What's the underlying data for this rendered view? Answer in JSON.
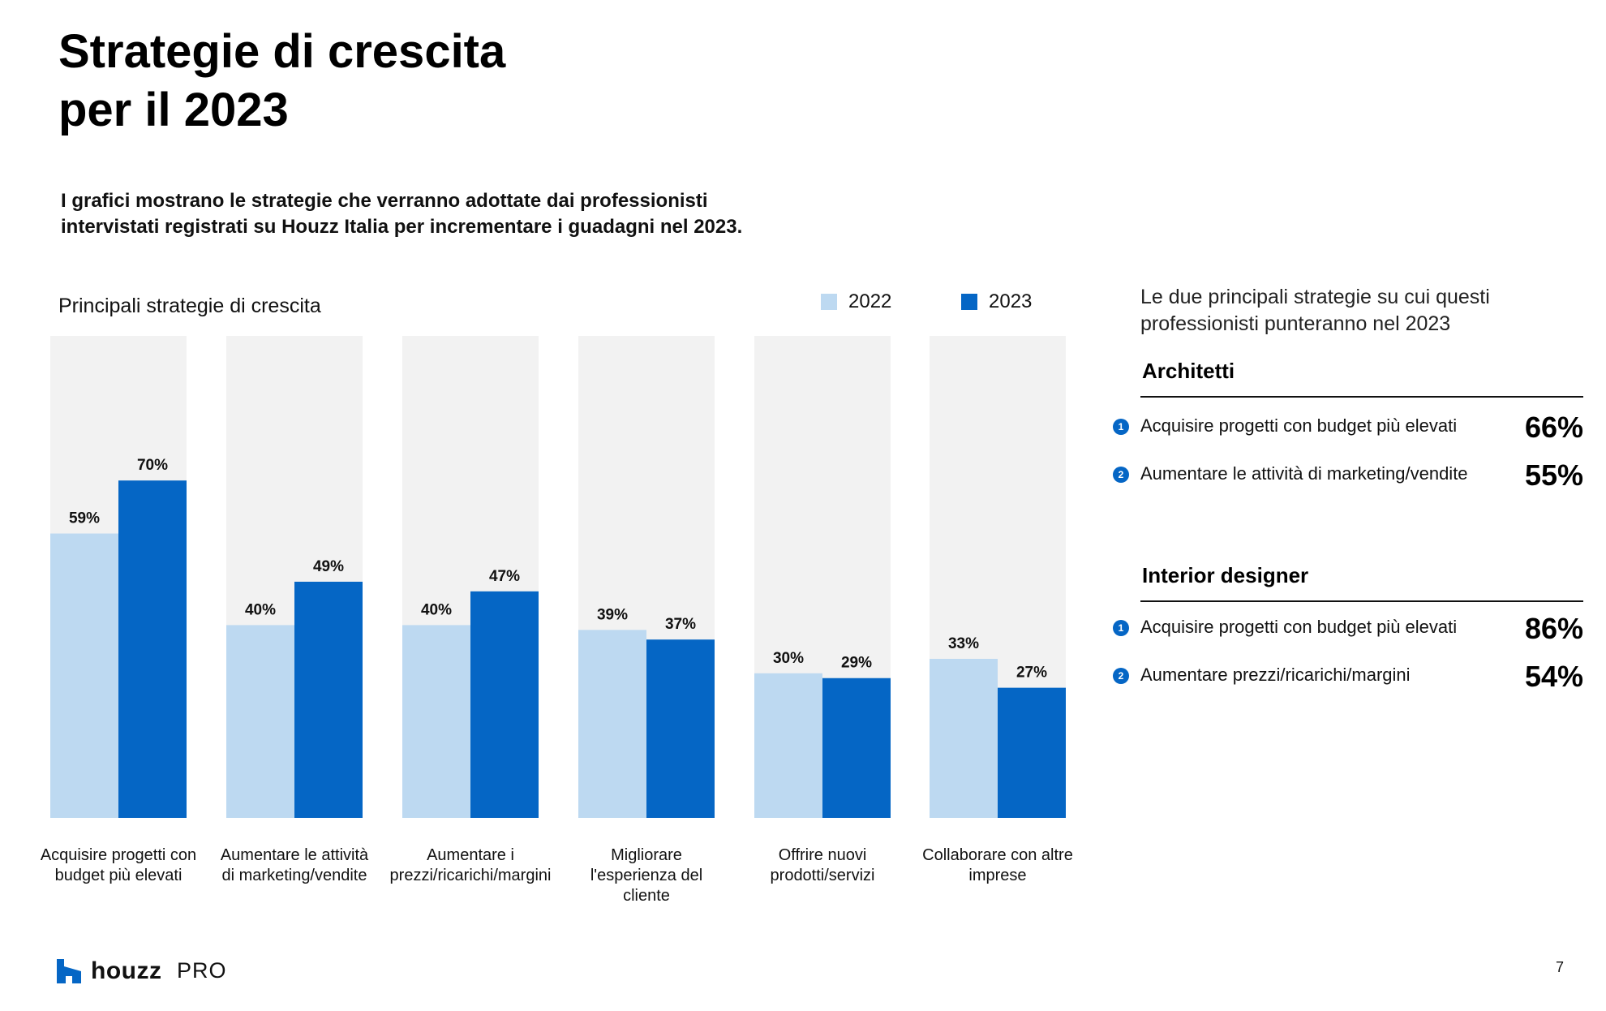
{
  "header": {
    "title_line1": "Strategie di crescita",
    "title_line2": "per il 2023",
    "subtitle_line1": "I grafici mostrano le strategie che verranno adottate dai professionisti",
    "subtitle_line2": "intervistati registrati su Houzz Italia per incrementare i guadagni nel 2023."
  },
  "colors": {
    "series_2022": "#bdd9f1",
    "series_2023": "#0566c5",
    "column_bg": "#f2f2f2",
    "accent": "#0566c5"
  },
  "chart_data": {
    "type": "bar",
    "title": "Principali strategie di crescita",
    "xlabel": "",
    "ylabel": "",
    "ylim": [
      0,
      100
    ],
    "grid": false,
    "legend_position": "top-right",
    "categories": [
      [
        "Acquisire progetti con",
        "budget più elevati"
      ],
      [
        "Aumentare le attività",
        "di marketing/vendite"
      ],
      [
        "Aumentare i",
        "prezzi/ricarichi/margini"
      ],
      [
        "Migliorare",
        "l'esperienza del",
        "cliente"
      ],
      [
        "Offrire nuovi",
        "prodotti/servizi"
      ],
      [
        "Collaborare con altre",
        "imprese"
      ]
    ],
    "series": [
      {
        "name": "2022",
        "values": [
          59,
          40,
          40,
          39,
          30,
          33
        ],
        "labels": [
          "59%",
          "40%",
          "40%",
          "39%",
          "30%",
          "33%"
        ]
      },
      {
        "name": "2023",
        "values": [
          70,
          49,
          47,
          37,
          29,
          27
        ],
        "labels": [
          "70%",
          "49%",
          "47%",
          "37%",
          "29%",
          "27%"
        ]
      }
    ]
  },
  "right_panel": {
    "intro_line1": "Le due principali strategie su cui questi",
    "intro_line2": "professionisti punteranno nel 2023",
    "groups": [
      {
        "title": "Architetti",
        "items": [
          {
            "rank": "1",
            "label": "Acquisire progetti con budget più elevati",
            "value": "66%"
          },
          {
            "rank": "2",
            "label": "Aumentare le attività di marketing/vendite",
            "value": "55%"
          }
        ]
      },
      {
        "title": "Interior designer",
        "items": [
          {
            "rank": "1",
            "label": "Acquisire progetti con budget più elevati",
            "value": "86%"
          },
          {
            "rank": "2",
            "label": "Aumentare prezzi/ricarichi/margini",
            "value": "54%"
          }
        ]
      }
    ]
  },
  "footer": {
    "brand": "houzz",
    "brand_suffix": "PRO",
    "logo_icon": "houzz-logo-icon",
    "page_number": "7"
  }
}
